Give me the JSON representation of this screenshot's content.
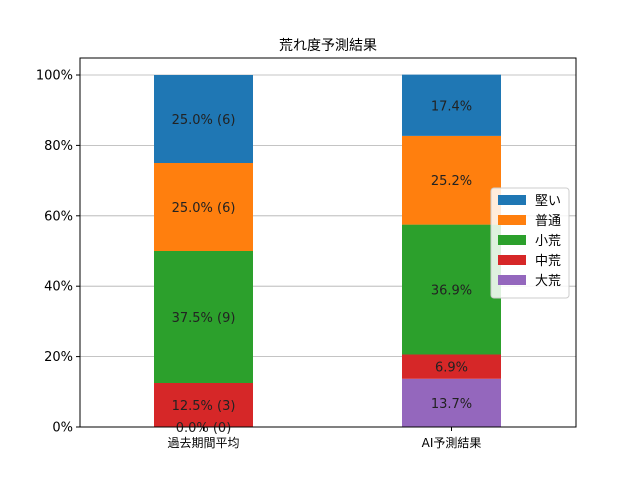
{
  "chart_data": {
    "type": "bar",
    "stacked": true,
    "title": "荒れ度予測結果",
    "xlabel": "",
    "ylabel": "",
    "ylim": [
      0,
      100
    ],
    "yticks": [
      "0%",
      "20%",
      "40%",
      "60%",
      "80%",
      "100%"
    ],
    "grid": "y",
    "legend_position": "center-right",
    "categories": [
      "過去期間平均",
      "AI予測結果"
    ],
    "series": [
      {
        "name": "大荒",
        "color": "#9467bd",
        "values": [
          0.0,
          13.7
        ],
        "labels": [
          "0.0% (0)",
          "13.7%"
        ]
      },
      {
        "name": "中荒",
        "color": "#d62728",
        "values": [
          12.5,
          6.9
        ],
        "labels": [
          "12.5% (3)",
          "6.9%"
        ]
      },
      {
        "name": "小荒",
        "color": "#2ca02c",
        "values": [
          37.5,
          36.9
        ],
        "labels": [
          "37.5% (9)",
          "36.9%"
        ]
      },
      {
        "name": "普通",
        "color": "#ff7f0e",
        "values": [
          25.0,
          25.2
        ],
        "labels": [
          "25.0% (6)",
          "25.2%"
        ]
      },
      {
        "name": "堅い",
        "color": "#1f77b4",
        "values": [
          25.0,
          17.4
        ],
        "labels": [
          "25.0% (6)",
          "17.4%"
        ]
      }
    ],
    "legend_order": [
      "堅い",
      "普通",
      "小荒",
      "中荒",
      "大荒"
    ]
  }
}
